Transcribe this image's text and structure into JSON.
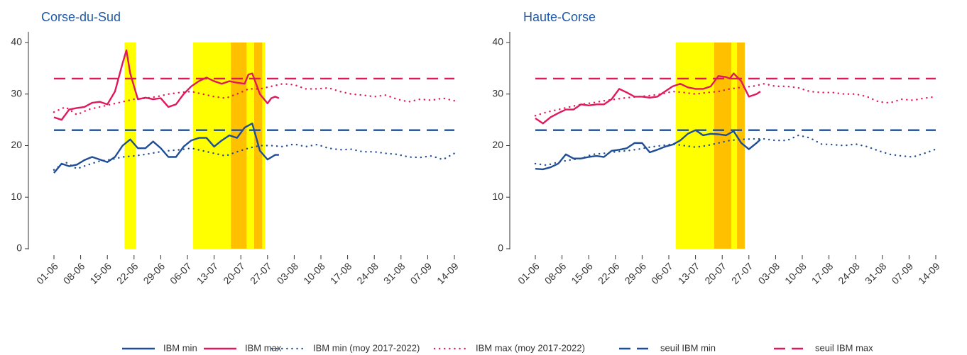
{
  "legend": [
    {
      "name": "IBM min",
      "color": "#1f4e96",
      "style": "solid"
    },
    {
      "name": "IBM max",
      "color": "#e0195a",
      "style": "solid"
    },
    {
      "name": "IBM min (moy 2017-2022)",
      "color": "#1f4e96",
      "style": "dotted"
    },
    {
      "name": "IBM max (moy 2017-2022)",
      "color": "#e0195a",
      "style": "dotted"
    },
    {
      "name": "seuil IBM min",
      "color": "#1f4e96",
      "style": "dashed"
    },
    {
      "name": "seuil IBM max",
      "color": "#e0195a",
      "style": "dashed"
    }
  ],
  "chart_data": [
    {
      "type": "line",
      "title": "Corse-du-Sud",
      "xlim": [
        0,
        105
      ],
      "ylim": [
        0,
        40
      ],
      "yticks": [
        0,
        10,
        20,
        30,
        40
      ],
      "xticks": [
        {
          "value": 0,
          "label": "01-06"
        },
        {
          "value": 7,
          "label": "08-06"
        },
        {
          "value": 14,
          "label": "15-06"
        },
        {
          "value": 21,
          "label": "22-06"
        },
        {
          "value": 28,
          "label": "29-06"
        },
        {
          "value": 35,
          "label": "06-07"
        },
        {
          "value": 42,
          "label": "13-07"
        },
        {
          "value": 49,
          "label": "20-07"
        },
        {
          "value": 56,
          "label": "27-07"
        },
        {
          "value": 63,
          "label": "03-08"
        },
        {
          "value": 70,
          "label": "10-08"
        },
        {
          "value": 77,
          "label": "17-08"
        },
        {
          "value": 84,
          "label": "24-08"
        },
        {
          "value": 91,
          "label": "31-08"
        },
        {
          "value": 98,
          "label": "07-09"
        },
        {
          "value": 105,
          "label": "14-09"
        }
      ],
      "bands": [
        {
          "x": [
            18.5,
            21.5
          ],
          "color": "#ffff00"
        },
        {
          "x": [
            36.5,
            55.3
          ],
          "color": "#ffff00"
        },
        {
          "x": [
            46.4,
            50.5
          ],
          "color": "#ffc000"
        },
        {
          "x": [
            52.5,
            54.6
          ],
          "color": "#ffc000"
        }
      ],
      "series": [
        {
          "x": [
            0,
            2,
            4,
            6,
            8,
            10,
            12,
            14,
            16,
            18,
            20,
            22,
            24,
            26,
            28,
            30,
            32,
            34,
            36,
            38,
            40,
            42,
            44,
            46,
            48,
            50,
            52,
            54,
            56,
            58,
            59
          ],
          "values": [
            14.7,
            16.5,
            16,
            16.3,
            17.2,
            17.8,
            17.3,
            16.8,
            17.8,
            20,
            21.2,
            19.5,
            19.5,
            20.8,
            19.5,
            17.8,
            17.8,
            19.8,
            21,
            21.5,
            21.5,
            19.8,
            21,
            22,
            21.5,
            23.5,
            24.3,
            19,
            17.3,
            18.2,
            18.2
          ]
        },
        {
          "x": [
            0,
            2,
            4,
            6,
            8,
            10,
            12,
            14,
            16,
            18,
            19,
            20,
            22,
            24,
            26,
            28,
            30,
            32,
            34,
            36,
            38,
            40,
            42,
            44,
            46,
            48,
            50,
            51,
            52,
            54,
            56,
            57,
            58,
            59
          ],
          "values": [
            25.5,
            25,
            27,
            27.3,
            27.5,
            28.3,
            28.5,
            28,
            30.5,
            36,
            38.5,
            34,
            29,
            29.3,
            29,
            29.2,
            27.5,
            28,
            30,
            31.5,
            32.5,
            33.2,
            32.5,
            32,
            32.5,
            32.2,
            32,
            33.8,
            34,
            30,
            28.2,
            29.2,
            29.5,
            29.2
          ]
        },
        {
          "x": [
            0,
            3,
            6,
            9,
            12,
            15,
            18,
            21,
            24,
            27,
            30,
            33,
            36,
            39,
            42,
            45,
            48,
            51,
            54,
            57,
            60,
            63,
            66,
            69,
            72,
            75,
            78,
            81,
            84,
            87,
            90,
            93,
            96,
            99,
            102,
            105
          ],
          "values": [
            15.3,
            16.8,
            15.5,
            16.3,
            17,
            17.3,
            17.8,
            18,
            18.3,
            18.7,
            19,
            19.2,
            19.5,
            19,
            18.5,
            18,
            18.8,
            19.5,
            20,
            20,
            19.8,
            20.3,
            19.8,
            20.2,
            19.5,
            19.2,
            19.3,
            18.8,
            18.8,
            18.5,
            18.3,
            17.8,
            17.7,
            18,
            17.3,
            18.5
          ]
        },
        {
          "x": [
            0,
            3,
            6,
            9,
            12,
            15,
            18,
            21,
            24,
            27,
            30,
            33,
            36,
            39,
            42,
            45,
            48,
            51,
            54,
            57,
            60,
            63,
            66,
            69,
            72,
            75,
            78,
            81,
            84,
            87,
            90,
            93,
            96,
            99,
            102,
            105
          ],
          "values": [
            26.5,
            27.5,
            26,
            27,
            27.5,
            28,
            28.5,
            29,
            29.2,
            29.5,
            30,
            30.3,
            30.5,
            30,
            29.5,
            29.2,
            30,
            31,
            31,
            31.5,
            32,
            31.8,
            31,
            31,
            31.2,
            30.5,
            30,
            29.8,
            29.5,
            29.8,
            29,
            28.5,
            29,
            28.8,
            29.2,
            28.7
          ]
        },
        {
          "x": [
            0,
            105
          ],
          "values": [
            23,
            23
          ]
        },
        {
          "x": [
            0,
            105
          ],
          "values": [
            33,
            33
          ]
        }
      ]
    },
    {
      "type": "line",
      "title": "Haute-Corse",
      "xlim": [
        0,
        105
      ],
      "ylim": [
        0,
        40
      ],
      "yticks": [
        0,
        10,
        20,
        30,
        40
      ],
      "xticks": [
        {
          "value": 0,
          "label": "01-06"
        },
        {
          "value": 7,
          "label": "08-06"
        },
        {
          "value": 14,
          "label": "15-06"
        },
        {
          "value": 21,
          "label": "22-06"
        },
        {
          "value": 28,
          "label": "29-06"
        },
        {
          "value": 35,
          "label": "06-07"
        },
        {
          "value": 42,
          "label": "13-07"
        },
        {
          "value": 49,
          "label": "20-07"
        },
        {
          "value": 56,
          "label": "27-07"
        },
        {
          "value": 63,
          "label": "03-08"
        },
        {
          "value": 70,
          "label": "10-08"
        },
        {
          "value": 77,
          "label": "17-08"
        },
        {
          "value": 84,
          "label": "24-08"
        },
        {
          "value": 91,
          "label": "31-08"
        },
        {
          "value": 98,
          "label": "07-09"
        },
        {
          "value": 105,
          "label": "14-09"
        }
      ],
      "bands": [
        {
          "x": [
            36.8,
            54.9
          ],
          "color": "#ffff00"
        },
        {
          "x": [
            46.9,
            51.4
          ],
          "color": "#ffc000"
        },
        {
          "x": [
            52.9,
            54.9
          ],
          "color": "#ffc000"
        }
      ],
      "series": [
        {
          "x": [
            0,
            2,
            4,
            6,
            8,
            10,
            12,
            14,
            16,
            18,
            20,
            22,
            24,
            26,
            28,
            30,
            32,
            34,
            36,
            38,
            40,
            42,
            44,
            46,
            48,
            50,
            52,
            54,
            56,
            58,
            59
          ],
          "values": [
            15.5,
            15.4,
            15.8,
            16.5,
            18.3,
            17.5,
            17.5,
            17.8,
            18,
            17.8,
            19,
            19.2,
            19.5,
            20.5,
            20.5,
            18.7,
            19.2,
            19.8,
            20.2,
            21,
            22.3,
            23,
            22,
            22.3,
            22.2,
            22,
            22.8,
            20.5,
            19.3,
            20.5,
            21.2
          ]
        },
        {
          "x": [
            0,
            2,
            4,
            6,
            8,
            10,
            12,
            14,
            16,
            18,
            20,
            22,
            24,
            26,
            28,
            30,
            32,
            34,
            36,
            38,
            40,
            42,
            44,
            46,
            48,
            50,
            51,
            52,
            54,
            56,
            58,
            59
          ],
          "values": [
            25.3,
            24.3,
            25.5,
            26.3,
            27,
            27,
            28,
            27.8,
            28,
            28,
            29,
            31,
            30.3,
            29.5,
            29.5,
            29.3,
            29.5,
            30.5,
            31.5,
            32,
            31.3,
            31,
            31,
            31.5,
            33.5,
            33.3,
            33,
            34,
            32.5,
            29.5,
            30,
            30.5
          ]
        },
        {
          "x": [
            0,
            3,
            6,
            9,
            12,
            15,
            18,
            21,
            24,
            27,
            30,
            33,
            36,
            39,
            42,
            45,
            48,
            51,
            54,
            57,
            60,
            63,
            66,
            69,
            72,
            75,
            78,
            81,
            84,
            87,
            90,
            93,
            96,
            99,
            102,
            105
          ],
          "values": [
            16.5,
            16.2,
            16.8,
            17.2,
            17.5,
            18.3,
            18.5,
            18.8,
            19,
            19.3,
            19.7,
            20,
            20.3,
            20,
            19.7,
            20,
            20.5,
            21,
            21.2,
            21.3,
            21.3,
            21,
            21,
            22,
            21.5,
            20.3,
            20.2,
            20,
            20.3,
            19.8,
            19,
            18.3,
            18,
            17.8,
            18.5,
            19.3
          ]
        },
        {
          "x": [
            0,
            3,
            6,
            9,
            12,
            15,
            18,
            21,
            24,
            27,
            30,
            33,
            36,
            39,
            42,
            45,
            48,
            51,
            54,
            57,
            60,
            63,
            66,
            69,
            72,
            75,
            78,
            81,
            84,
            87,
            90,
            93,
            96,
            99,
            102,
            105
          ],
          "values": [
            25.8,
            26.5,
            27,
            27.5,
            28,
            28.3,
            28.7,
            29,
            29.3,
            29.5,
            29.7,
            30,
            30.5,
            30.3,
            30,
            30.3,
            30.5,
            31,
            31.3,
            31.5,
            32,
            31.5,
            31.5,
            31.2,
            30.5,
            30.3,
            30.3,
            30,
            30,
            29.5,
            28.5,
            28.3,
            29,
            28.8,
            29.2,
            29.5
          ]
        },
        {
          "x": [
            0,
            105
          ],
          "values": [
            23,
            23
          ]
        },
        {
          "x": [
            0,
            105
          ],
          "values": [
            33,
            33
          ]
        }
      ]
    }
  ]
}
